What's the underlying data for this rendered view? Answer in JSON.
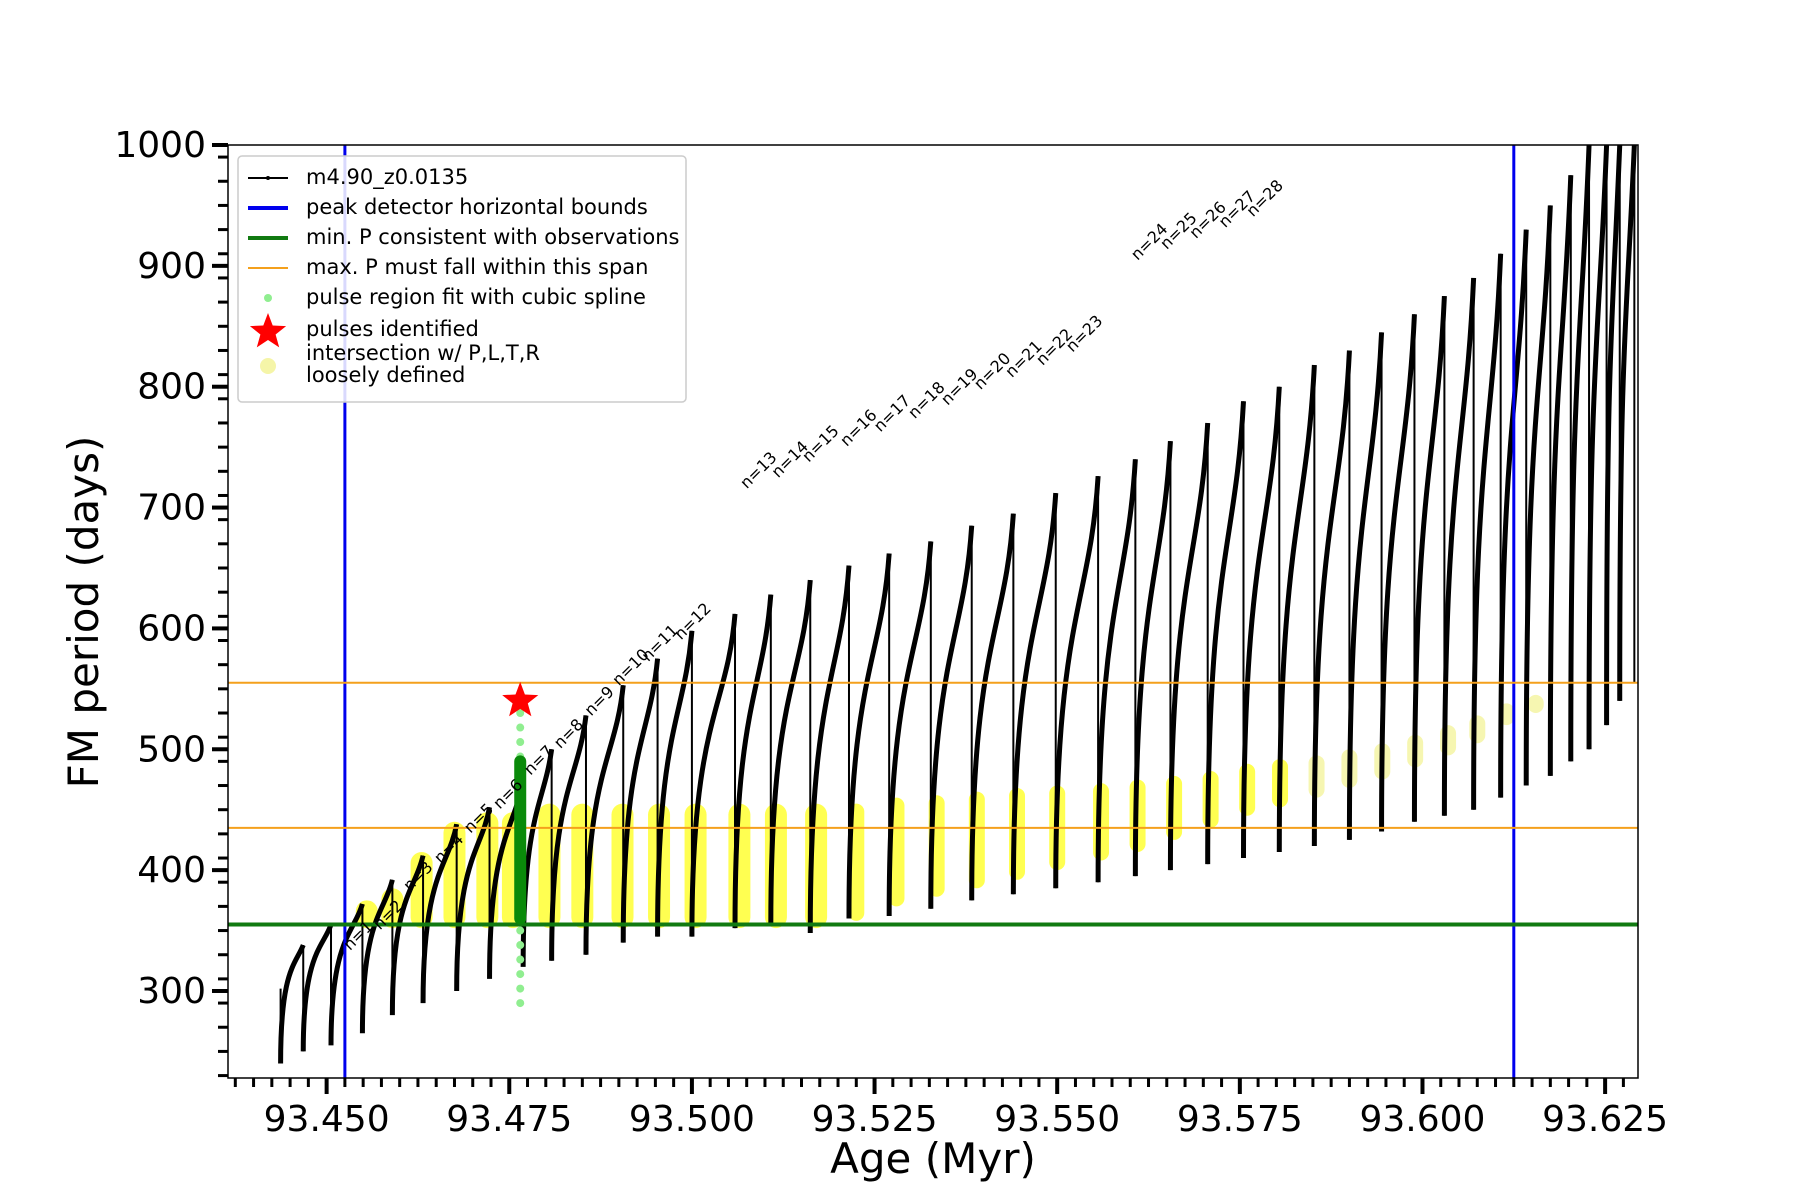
{
  "chart_data": {
    "type": "line",
    "xlabel": "Age (Myr)",
    "ylabel": "FM period (days)",
    "xlim": [
      93.4365,
      93.6295
    ],
    "ylim": [
      228,
      1000
    ],
    "x_ticks": [
      "93.450",
      "93.475",
      "93.500",
      "93.525",
      "93.550",
      "93.575",
      "93.600",
      "93.625"
    ],
    "x_tick_values": [
      93.45,
      93.475,
      93.5,
      93.525,
      93.55,
      93.575,
      93.6,
      93.625
    ],
    "y_ticks": [
      "300",
      "400",
      "500",
      "600",
      "700",
      "800",
      "900",
      "1000"
    ],
    "y_tick_values": [
      300,
      400,
      500,
      600,
      700,
      800,
      900,
      1000
    ],
    "legend_position": "upper-left",
    "legend": [
      {
        "label": "m4.90_z0.0135",
        "style": "black-line-dots"
      },
      {
        "label": "peak detector horizontal bounds",
        "style": "blue-line"
      },
      {
        "label": "min. P consistent with observations",
        "style": "green-line"
      },
      {
        "label": "max. P must fall within this span",
        "style": "orange-line"
      },
      {
        "label": "pulse region fit with cubic spline",
        "style": "lightgreen-dot"
      },
      {
        "label": "pulses identified",
        "style": "red-star"
      },
      {
        "label": "intersection w/ P,L,T,R",
        "label2": "loosely defined",
        "style": "yellow-dot"
      }
    ],
    "series": [
      {
        "name": "m4.90_z0.0135",
        "color": "#000000",
        "pulses": [
          {
            "x": 93.4437,
            "base": 240,
            "peak": 302,
            "dip": 240
          },
          {
            "x": 93.4468,
            "base": 250,
            "peak": 338,
            "dip": 250
          },
          {
            "x": 93.4506,
            "base": 255,
            "peak": 355,
            "dip": 262
          },
          {
            "x": 93.4549,
            "base": 265,
            "peak": 372,
            "dip": 275
          },
          {
            "x": 93.459,
            "base": 280,
            "peak": 392,
            "dip": 282
          },
          {
            "x": 93.4632,
            "base": 290,
            "peak": 412,
            "dip": 292
          },
          {
            "x": 93.4678,
            "base": 300,
            "peak": 438,
            "dip": 305
          },
          {
            "x": 93.4723,
            "base": 310,
            "peak": 452,
            "dip": 315
          },
          {
            "x": 93.4769,
            "base": 320,
            "peak": 475,
            "dip": 330
          },
          {
            "x": 93.4808,
            "base": 325,
            "peak": 500,
            "dip": 325
          },
          {
            "x": 93.4855,
            "base": 330,
            "peak": 528,
            "dip": 330
          },
          {
            "x": 93.4906,
            "base": 340,
            "peak": 553,
            "dip": 340
          },
          {
            "x": 93.4953,
            "base": 345,
            "peak": 575,
            "dip": 345
          },
          {
            "x": 93.5,
            "base": 345,
            "peak": 598,
            "dip": 345
          },
          {
            "x": 93.5059,
            "base": 352,
            "peak": 612,
            "dip": 352
          },
          {
            "x": 93.5108,
            "base": 355,
            "peak": 628,
            "dip": 355
          },
          {
            "x": 93.5162,
            "base": 348,
            "peak": 640,
            "dip": 348
          },
          {
            "x": 93.5215,
            "base": 360,
            "peak": 652,
            "dip": 360
          },
          {
            "x": 93.527,
            "base": 362,
            "peak": 662,
            "dip": 362
          },
          {
            "x": 93.5327,
            "base": 368,
            "peak": 672,
            "dip": 368
          },
          {
            "x": 93.5383,
            "base": 375,
            "peak": 685,
            "dip": 375
          },
          {
            "x": 93.544,
            "base": 380,
            "peak": 695,
            "dip": 380
          },
          {
            "x": 93.5498,
            "base": 385,
            "peak": 712,
            "dip": 385
          },
          {
            "x": 93.5556,
            "base": 390,
            "peak": 726,
            "dip": 390
          },
          {
            "x": 93.5607,
            "base": 395,
            "peak": 740,
            "dip": 395
          },
          {
            "x": 93.5655,
            "base": 400,
            "peak": 755,
            "dip": 400
          },
          {
            "x": 93.5706,
            "base": 405,
            "peak": 770,
            "dip": 405
          },
          {
            "x": 93.5755,
            "base": 410,
            "peak": 788,
            "dip": 410
          },
          {
            "x": 93.5804,
            "base": 415,
            "peak": 800,
            "dip": 415
          },
          {
            "x": 93.5852,
            "base": 420,
            "peak": 818,
            "dip": 420
          },
          {
            "x": 93.59,
            "base": 425,
            "peak": 830,
            "dip": 425
          },
          {
            "x": 93.5944,
            "base": 432,
            "peak": 845,
            "dip": 432
          },
          {
            "x": 93.5989,
            "base": 440,
            "peak": 860,
            "dip": 440
          },
          {
            "x": 93.603,
            "base": 445,
            "peak": 875,
            "dip": 445
          },
          {
            "x": 93.607,
            "base": 450,
            "peak": 890,
            "dip": 450
          },
          {
            "x": 93.6107,
            "base": 460,
            "peak": 910,
            "dip": 460
          },
          {
            "x": 93.6142,
            "base": 470,
            "peak": 930,
            "dip": 470
          },
          {
            "x": 93.6175,
            "base": 478,
            "peak": 950,
            "dip": 478
          },
          {
            "x": 93.6203,
            "base": 490,
            "peak": 975,
            "dip": 490
          },
          {
            "x": 93.6228,
            "base": 500,
            "peak": 1000,
            "dip": 500
          },
          {
            "x": 93.6252,
            "base": 520,
            "peak": 1000,
            "dip": 520
          },
          {
            "x": 93.627,
            "base": 540,
            "peak": 1000,
            "dip": 540
          },
          {
            "x": 93.629,
            "base": 555,
            "peak": 1000,
            "dip": 555
          }
        ]
      }
    ],
    "peak_detector_bounds": [
      93.4525,
      93.6125
    ],
    "min_P_observations": 355,
    "max_P_span": [
      435,
      555
    ],
    "pulse_identified": {
      "x": 93.4765,
      "y": 540,
      "label": "n=7"
    },
    "spline_region": {
      "x": 93.4765,
      "y_min": 290,
      "y_max": 540
    },
    "fit_region": {
      "x": 93.4765,
      "y_min": 355,
      "y_max": 495
    },
    "pulse_labels": [
      {
        "label": "n=1",
        "x": 93.4532,
        "y": 333
      },
      {
        "label": "n=2",
        "x": 93.4573,
        "y": 350
      },
      {
        "label": "n=3",
        "x": 93.4614,
        "y": 382
      },
      {
        "label": "n=4",
        "x": 93.4656,
        "y": 405
      },
      {
        "label": "n=5",
        "x": 93.4697,
        "y": 430
      },
      {
        "label": "n=6",
        "x": 93.4737,
        "y": 450
      },
      {
        "label": "n=7",
        "x": 93.4779,
        "y": 478
      },
      {
        "label": "n=8",
        "x": 93.482,
        "y": 500
      },
      {
        "label": "n=9",
        "x": 93.4862,
        "y": 527
      },
      {
        "label": "n=10",
        "x": 93.49,
        "y": 552
      },
      {
        "label": "n=11",
        "x": 93.494,
        "y": 572
      },
      {
        "label": "n=12",
        "x": 93.4985,
        "y": 590
      },
      {
        "label": "n=13",
        "x": 93.5075,
        "y": 715
      },
      {
        "label": "n=14",
        "x": 93.5118,
        "y": 724
      },
      {
        "label": "n=15",
        "x": 93.516,
        "y": 737
      },
      {
        "label": "n=16",
        "x": 93.5212,
        "y": 750
      },
      {
        "label": "n=17",
        "x": 93.5258,
        "y": 762
      },
      {
        "label": "n=18",
        "x": 93.5305,
        "y": 773
      },
      {
        "label": "n=19",
        "x": 93.535,
        "y": 784
      },
      {
        "label": "n=20",
        "x": 93.5395,
        "y": 797
      },
      {
        "label": "n=21",
        "x": 93.5438,
        "y": 807
      },
      {
        "label": "n=22",
        "x": 93.548,
        "y": 817
      },
      {
        "label": "n=23",
        "x": 93.5521,
        "y": 828
      },
      {
        "label": "n=24",
        "x": 93.561,
        "y": 904
      },
      {
        "label": "n=25",
        "x": 93.565,
        "y": 913
      },
      {
        "label": "n=26",
        "x": 93.569,
        "y": 922
      },
      {
        "label": "n=27",
        "x": 93.573,
        "y": 931
      },
      {
        "label": "n=28",
        "x": 93.5768,
        "y": 940
      }
    ],
    "yellow_intersections": [
      {
        "x": 93.4555,
        "y_min": 352,
        "y_max": 375
      },
      {
        "x": 93.459,
        "y_min": 352,
        "y_max": 385
      },
      {
        "x": 93.463,
        "y_min": 352,
        "y_max": 415
      },
      {
        "x": 93.4675,
        "y_min": 352,
        "y_max": 440
      },
      {
        "x": 93.472,
        "y_min": 352,
        "y_max": 448
      },
      {
        "x": 93.4755,
        "y_min": 352,
        "y_max": 448
      },
      {
        "x": 93.4805,
        "y_min": 352,
        "y_max": 455
      },
      {
        "x": 93.485,
        "y_min": 352,
        "y_max": 455
      },
      {
        "x": 93.4905,
        "y_min": 352,
        "y_max": 455
      },
      {
        "x": 93.4955,
        "y_min": 352,
        "y_max": 455
      },
      {
        "x": 93.5005,
        "y_min": 352,
        "y_max": 455
      },
      {
        "x": 93.5065,
        "y_min": 352,
        "y_max": 455
      },
      {
        "x": 93.5115,
        "y_min": 352,
        "y_max": 455
      },
      {
        "x": 93.517,
        "y_min": 352,
        "y_max": 455
      },
      {
        "x": 93.5225,
        "y_min": 358,
        "y_max": 455
      },
      {
        "x": 93.528,
        "y_min": 370,
        "y_max": 460
      },
      {
        "x": 93.5335,
        "y_min": 378,
        "y_max": 462
      },
      {
        "x": 93.539,
        "y_min": 385,
        "y_max": 465
      },
      {
        "x": 93.5445,
        "y_min": 392,
        "y_max": 468
      },
      {
        "x": 93.55,
        "y_min": 400,
        "y_max": 470
      },
      {
        "x": 93.556,
        "y_min": 408,
        "y_max": 472
      },
      {
        "x": 93.561,
        "y_min": 415,
        "y_max": 475
      },
      {
        "x": 93.566,
        "y_min": 425,
        "y_max": 478
      },
      {
        "x": 93.571,
        "y_min": 435,
        "y_max": 482
      },
      {
        "x": 93.576,
        "y_min": 445,
        "y_max": 488
      },
      {
        "x": 93.5805,
        "y_min": 452,
        "y_max": 492
      },
      {
        "x": 93.5855,
        "y_min": 460,
        "y_max": 495
      },
      {
        "x": 93.59,
        "y_min": 468,
        "y_max": 500
      },
      {
        "x": 93.5945,
        "y_min": 475,
        "y_max": 505
      },
      {
        "x": 93.599,
        "y_min": 485,
        "y_max": 512
      },
      {
        "x": 93.6035,
        "y_min": 495,
        "y_max": 520
      },
      {
        "x": 93.6075,
        "y_min": 505,
        "y_max": 528
      },
      {
        "x": 93.6115,
        "y_min": 520,
        "y_max": 538
      },
      {
        "x": 93.6155,
        "y_min": 530,
        "y_max": 545
      }
    ],
    "colors": {
      "series": "#000000",
      "bounds": "#0000ee",
      "min_P": "#117a11",
      "max_P": "#f4a01c",
      "spline": "#90ee90",
      "fit": "#0a8a0a",
      "star": "#ff0000",
      "intersection": "#ffff33",
      "intersection_faint": "#f5f5a8"
    }
  }
}
